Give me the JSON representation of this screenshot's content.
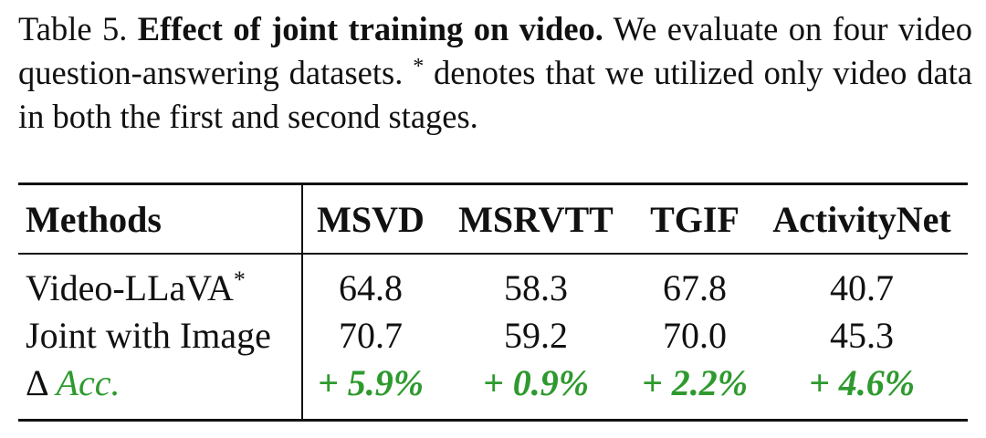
{
  "caption": {
    "label": "Table 5.",
    "title": "Effect of joint training on video.",
    "text_part1": "We evaluate on four video question-answering datasets.",
    "asterisk": "*",
    "text_part2": "denotes that we utilized only video data in both the first and second stages."
  },
  "table": {
    "headers": [
      "Methods",
      "MSVD",
      "MSRVTT",
      "TGIF",
      "ActivityNet"
    ],
    "rows": [
      {
        "method": "Video-LLaVA",
        "method_sup": "*",
        "values": [
          "64.8",
          "58.3",
          "67.8",
          "40.7"
        ]
      },
      {
        "method": "Joint with Image",
        "values": [
          "70.7",
          "59.2",
          "70.0",
          "45.3"
        ]
      }
    ],
    "delta_row": {
      "symbol": "Δ",
      "label": "Acc.",
      "values": [
        "+ 5.9%",
        "+ 0.9%",
        "+ 2.2%",
        "+ 4.6%"
      ]
    }
  },
  "colors": {
    "gain_green": "#2e9a2e",
    "text": "#111111"
  }
}
